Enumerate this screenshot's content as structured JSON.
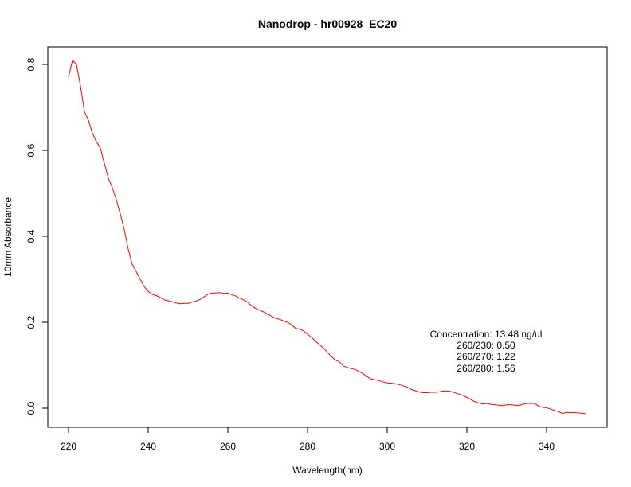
{
  "chart_data": {
    "type": "line",
    "title": "Nanodrop - hr00928_EC20",
    "xlabel": "Wavelength(nm)",
    "ylabel": "10mm Absorbance",
    "xlim": [
      220,
      350
    ],
    "ylim": [
      0.0,
      0.8
    ],
    "x_ticks": [
      220,
      240,
      260,
      280,
      300,
      320,
      340
    ],
    "x_tick_labels": [
      "220",
      "240",
      "260",
      "280",
      "300",
      "320",
      "340"
    ],
    "y_ticks": [
      0.0,
      0.2,
      0.4,
      0.6,
      0.8
    ],
    "y_tick_labels": [
      "0.0",
      "0.2",
      "0.4",
      "0.6",
      "0.8"
    ],
    "grid": false,
    "legend": "none",
    "series_color": "#ff0000",
    "series": [
      {
        "x": [
          220,
          221,
          222,
          223,
          224,
          225,
          226,
          227,
          228,
          229,
          230,
          231,
          232,
          233,
          234,
          235,
          236,
          237,
          238,
          239,
          240,
          241,
          242,
          243,
          244,
          245,
          246,
          247,
          248,
          249,
          250,
          251,
          252,
          253,
          254,
          255,
          256,
          257,
          258,
          259,
          260,
          261,
          262,
          263,
          264,
          265,
          266,
          267,
          268,
          269,
          270,
          271,
          272,
          273,
          274,
          275,
          276,
          277,
          278,
          279,
          280,
          281,
          282,
          283,
          284,
          285,
          286,
          287,
          288,
          289,
          290,
          291,
          292,
          293,
          294,
          295,
          296,
          297,
          298,
          299,
          300,
          301,
          302,
          303,
          304,
          305,
          306,
          307,
          308,
          309,
          310,
          311,
          312,
          313,
          314,
          315,
          316,
          317,
          318,
          319,
          320,
          321,
          322,
          323,
          324,
          325,
          326,
          327,
          328,
          329,
          330,
          331,
          332,
          333,
          334,
          335,
          336,
          337,
          338,
          339,
          340,
          341,
          342,
          343,
          344,
          345,
          346,
          347,
          348,
          349,
          350
        ],
        "y": [
          0.77,
          0.81,
          0.8,
          0.75,
          0.69,
          0.67,
          0.64,
          0.62,
          0.605,
          0.57,
          0.535,
          0.513,
          0.485,
          0.452,
          0.415,
          0.37,
          0.335,
          0.318,
          0.3,
          0.283,
          0.272,
          0.265,
          0.262,
          0.258,
          0.252,
          0.25,
          0.248,
          0.245,
          0.243,
          0.244,
          0.244,
          0.247,
          0.249,
          0.253,
          0.259,
          0.265,
          0.268,
          0.268,
          0.269,
          0.267,
          0.268,
          0.264,
          0.261,
          0.256,
          0.252,
          0.246,
          0.238,
          0.232,
          0.228,
          0.224,
          0.219,
          0.214,
          0.209,
          0.207,
          0.203,
          0.2,
          0.194,
          0.186,
          0.184,
          0.18,
          0.172,
          0.165,
          0.156,
          0.148,
          0.14,
          0.13,
          0.12,
          0.112,
          0.108,
          0.098,
          0.095,
          0.092,
          0.09,
          0.085,
          0.08,
          0.073,
          0.068,
          0.066,
          0.064,
          0.061,
          0.059,
          0.058,
          0.057,
          0.055,
          0.052,
          0.049,
          0.044,
          0.041,
          0.038,
          0.036,
          0.036,
          0.037,
          0.037,
          0.038,
          0.04,
          0.04,
          0.039,
          0.036,
          0.033,
          0.03,
          0.025,
          0.02,
          0.015,
          0.012,
          0.01,
          0.011,
          0.009,
          0.008,
          0.007,
          0.006,
          0.008,
          0.008,
          0.007,
          0.006,
          0.009,
          0.011,
          0.011,
          0.011,
          0.005,
          0.002,
          0.001,
          -0.002,
          -0.005,
          -0.008,
          -0.012,
          -0.01,
          -0.01,
          -0.01,
          -0.011,
          -0.012,
          -0.013
        ]
      }
    ],
    "annotations": [
      "Concentration: 13.48 ng/ul",
      "260/230: 0.50",
      "260/270: 1.22",
      "260/280: 1.56"
    ]
  }
}
